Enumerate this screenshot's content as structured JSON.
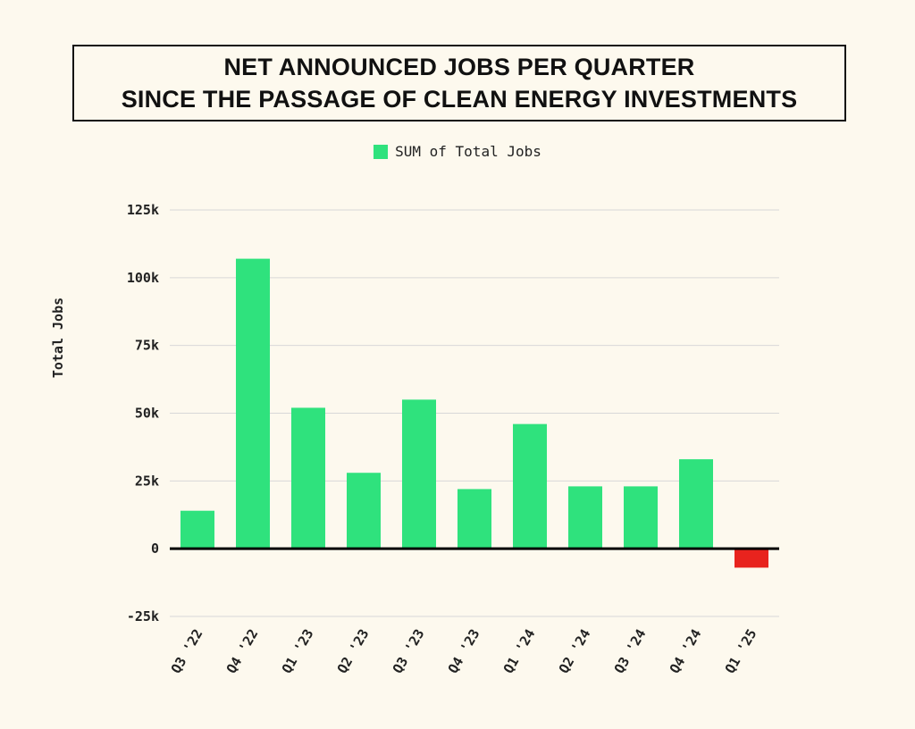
{
  "chart_data": {
    "type": "bar",
    "title": [
      "NET ANNOUNCED JOBS PER QUARTER",
      "SINCE THE PASSAGE OF CLEAN ENERGY INVESTMENTS"
    ],
    "legend": {
      "label": "SUM of Total Jobs",
      "position": "top"
    },
    "ylabel": "Total Jobs",
    "xlabel": "",
    "categories": [
      "Q3 '22",
      "Q4 '22",
      "Q1 '23",
      "Q2 '23",
      "Q3 '23",
      "Q4 '23",
      "Q1 '24",
      "Q2 '24",
      "Q3 '24",
      "Q4 '24",
      "Q1 '25"
    ],
    "values": [
      14000,
      107000,
      52000,
      28000,
      55000,
      22000,
      46000,
      23000,
      23000,
      33000,
      -7000
    ],
    "ylim": [
      -25000,
      125000
    ],
    "yticks": [
      -25000,
      0,
      25000,
      50000,
      75000,
      100000,
      125000
    ],
    "ytick_labels": [
      "-25k",
      "0",
      "25k",
      "50k",
      "75k",
      "100k",
      "125k"
    ],
    "grid": true,
    "colors": {
      "positive": "#2fe27d",
      "negative": "#e8231e",
      "zero_line": "#000000",
      "grid": "#d8d8d8",
      "background": "#fdf9ee"
    }
  }
}
